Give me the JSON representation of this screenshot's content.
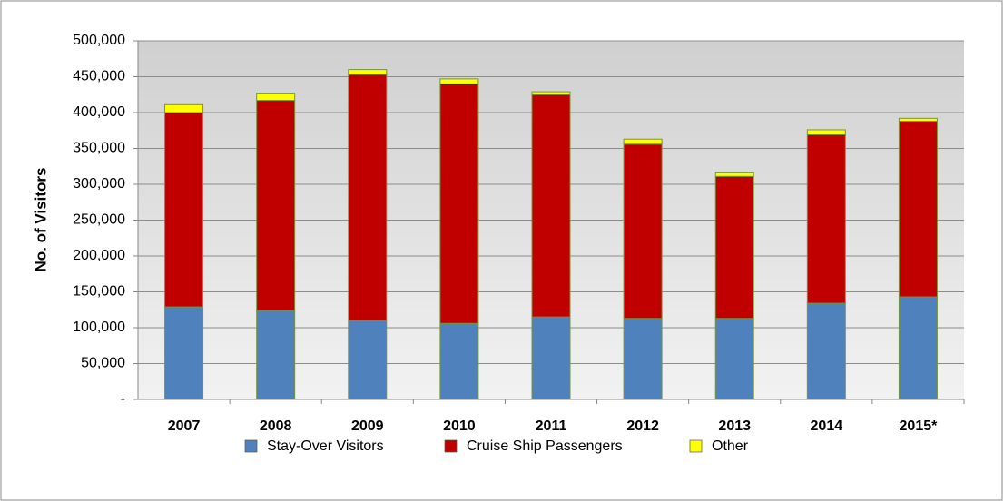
{
  "chart_data": {
    "type": "stacked_bar",
    "y_label": "No. of Visitors",
    "categories": [
      "2007",
      "2008",
      "2009",
      "2010",
      "2011",
      "2012",
      "2013",
      "2014",
      "2015*"
    ],
    "series": [
      {
        "name": "Stay-Over Visitors",
        "color": "#4f81bd",
        "values": [
          129000,
          124000,
          110000,
          106000,
          115000,
          113000,
          113000,
          134000,
          143000
        ]
      },
      {
        "name": "Cruise Ship Passengers",
        "color": "#c00000",
        "values": [
          271000,
          293000,
          343000,
          334000,
          310000,
          243000,
          198000,
          235000,
          245000
        ]
      },
      {
        "name": "Other",
        "color": "#ffff00",
        "values": [
          11000,
          10000,
          7000,
          7000,
          4000,
          7000,
          5000,
          7000,
          4000
        ]
      }
    ],
    "ylim": [
      0,
      500000
    ],
    "yticks": [
      {
        "value": 0,
        "label": "-"
      },
      {
        "value": 50000,
        "label": "50,000"
      },
      {
        "value": 100000,
        "label": "100,000"
      },
      {
        "value": 150000,
        "label": "150,000"
      },
      {
        "value": 200000,
        "label": "200,000"
      },
      {
        "value": 250000,
        "label": "250,000"
      },
      {
        "value": 300000,
        "label": "300,000"
      },
      {
        "value": 350000,
        "label": "350,000"
      },
      {
        "value": 400000,
        "label": "400,000"
      },
      {
        "value": 450000,
        "label": "450,000"
      },
      {
        "value": 500000,
        "label": "500,000"
      }
    ],
    "grid": true,
    "legend": "bottom"
  }
}
